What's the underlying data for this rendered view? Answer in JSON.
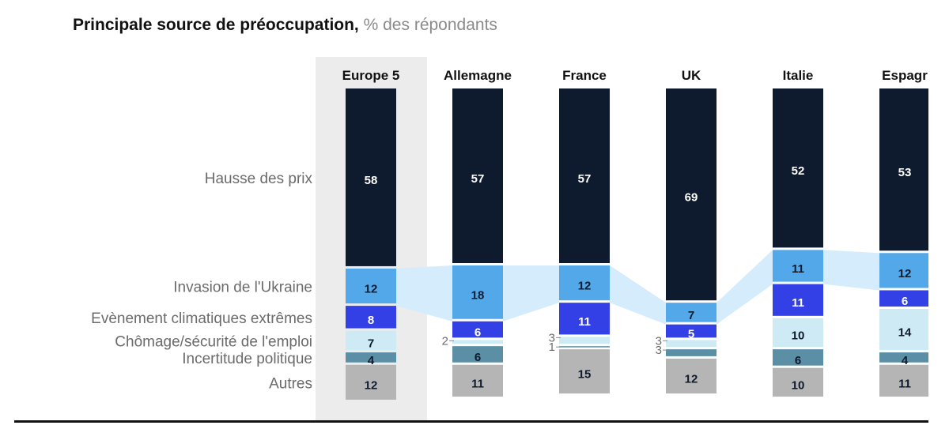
{
  "title": {
    "main": "Principale source de préoccupation,",
    "subtitle": "% des répondants"
  },
  "chart_data": {
    "type": "bar",
    "stacked": true,
    "categories": [
      "Europe 5",
      "Allemagne",
      "France",
      "UK",
      "Italie",
      "Espagne"
    ],
    "category_labels_shown": [
      "Europe 5",
      "Allemagne",
      "France",
      "UK",
      "Italie",
      "Espagr"
    ],
    "series": [
      {
        "name": "Hausse des prix",
        "color": "#0e1a2e",
        "text_color": "#ffffff",
        "values": [
          58,
          57,
          57,
          69,
          52,
          53
        ]
      },
      {
        "name": "Invasion de l'Ukraine",
        "color": "#52a8e8",
        "text_color": "#0e1a2e",
        "values": [
          12,
          18,
          12,
          7,
          11,
          12
        ]
      },
      {
        "name": "Evènement climatiques extrêmes",
        "color": "#3340e6",
        "text_color": "#ffffff",
        "values": [
          8,
          6,
          11,
          5,
          11,
          6
        ]
      },
      {
        "name": "Chômage/sécurité de l'emploi",
        "color": "#cdeaf5",
        "text_color": "#0e1a2e",
        "values": [
          7,
          2,
          3,
          3,
          10,
          14
        ]
      },
      {
        "name": "Incertitude politique",
        "color": "#5a8fa6",
        "text_color": "#0e1a2e",
        "values": [
          4,
          6,
          1,
          3,
          6,
          4
        ]
      },
      {
        "name": "Autres",
        "color": "#b5b5b5",
        "text_color": "#0e1a2e",
        "values": [
          12,
          11,
          15,
          12,
          10,
          11
        ]
      }
    ],
    "ylim": [
      0,
      100
    ],
    "highlight_category": "Europe 5",
    "connector_series": [
      "Invasion de l'Ukraine"
    ]
  }
}
